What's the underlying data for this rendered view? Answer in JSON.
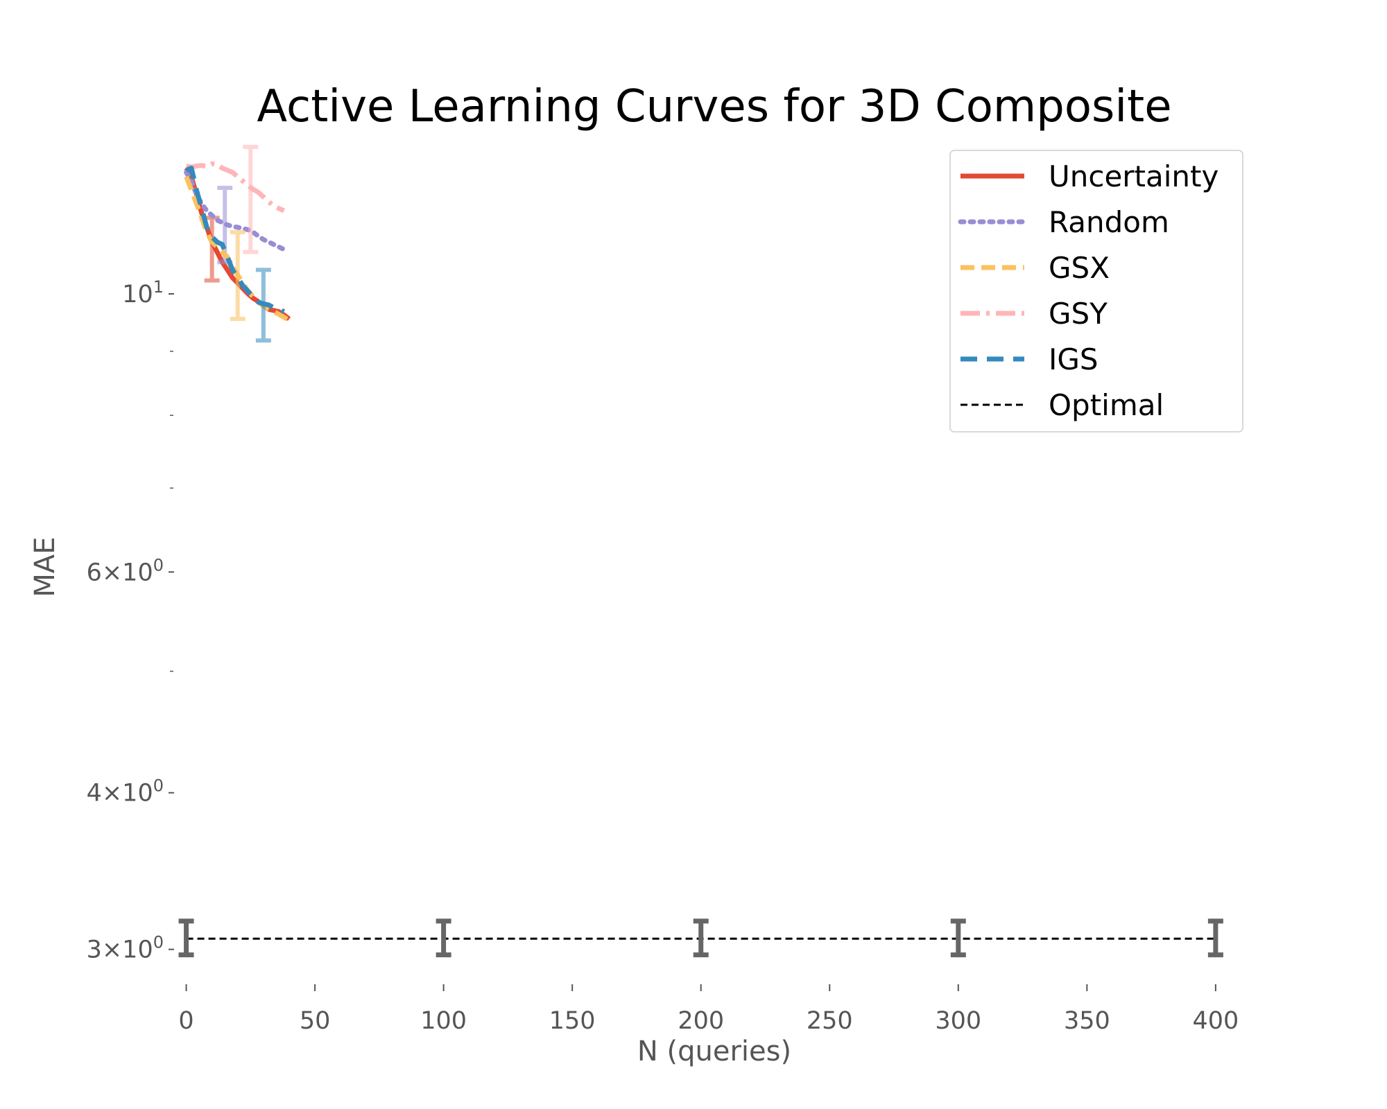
{
  "chart_data": {
    "type": "line",
    "title": "Active Learning Curves for 3D Composite",
    "xlabel": "N (queries)",
    "ylabel": "MAE",
    "xlim": [
      -5,
      410
    ],
    "ylim": [
      2.85,
      13.3
    ],
    "yscale": "log",
    "grid": false,
    "legend_position": "top-right",
    "x_ticks": [
      {
        "value": 0,
        "label": "0"
      },
      {
        "value": 50,
        "label": "50"
      },
      {
        "value": 100,
        "label": "100"
      },
      {
        "value": 150,
        "label": "150"
      },
      {
        "value": 200,
        "label": "200"
      },
      {
        "value": 250,
        "label": "250"
      },
      {
        "value": 300,
        "label": "300"
      },
      {
        "value": 350,
        "label": "350"
      },
      {
        "value": 400,
        "label": "400"
      }
    ],
    "y_ticks": [
      {
        "value": 10,
        "base": "10",
        "exp": "1",
        "mult": ""
      },
      {
        "value": 6,
        "base": "10",
        "exp": "0",
        "mult": "6×"
      },
      {
        "value": 4,
        "base": "10",
        "exp": "0",
        "mult": "4×"
      },
      {
        "value": 3,
        "base": "10",
        "exp": "0",
        "mult": "3×"
      }
    ],
    "y_minor_ticks": [
      9,
      8,
      7,
      5
    ],
    "series": [
      {
        "name": "Uncertainty",
        "color": "#E24A33",
        "dash": "solid",
        "x": [
          0,
          2,
          4,
          6,
          8,
          10,
          12,
          14,
          16,
          18,
          20,
          22,
          24,
          26,
          28,
          30,
          32,
          34,
          36,
          38,
          40
        ],
        "y": [
          12.6,
          12.4,
          12.0,
          11.6,
          11.3,
          11.0,
          10.8,
          10.6,
          10.45,
          10.3,
          10.2,
          10.1,
          10.0,
          9.92,
          9.86,
          9.78,
          9.72,
          9.7,
          9.68,
          9.62,
          9.55
        ],
        "errorbars": [
          {
            "x": 10,
            "low": 10.25,
            "high": 11.5
          }
        ]
      },
      {
        "name": "Random",
        "color": "#988ED5",
        "dash": "dotted",
        "x": [
          0,
          2,
          4,
          6,
          8,
          10,
          12,
          14,
          16,
          18,
          20,
          22,
          24,
          26,
          28,
          30,
          32,
          34,
          36,
          38
        ],
        "y": [
          12.5,
          12.3,
          12.0,
          11.8,
          11.65,
          11.55,
          11.45,
          11.4,
          11.35,
          11.32,
          11.3,
          11.28,
          11.25,
          11.2,
          11.12,
          11.05,
          11.0,
          10.95,
          10.9,
          10.85
        ],
        "errorbars": [
          {
            "x": 15,
            "low": 10.6,
            "high": 12.15
          }
        ]
      },
      {
        "name": "GSX",
        "color": "#FBC15E",
        "dash": "dashed",
        "x": [
          0,
          2,
          4,
          6,
          8,
          10,
          12,
          14,
          16,
          18,
          20,
          22,
          24,
          26,
          28,
          30,
          32,
          34,
          36,
          38,
          40
        ],
        "y": [
          12.4,
          12.1,
          11.8,
          11.5,
          11.2,
          11.0,
          10.9,
          10.8,
          10.7,
          10.5,
          10.35,
          10.2,
          10.05,
          9.95,
          9.85,
          9.78,
          9.72,
          9.68,
          9.63,
          9.58,
          9.52
        ],
        "errorbars": [
          {
            "x": 20,
            "low": 9.55,
            "high": 11.2
          }
        ]
      },
      {
        "name": "GSY",
        "color": "#FFB5B8",
        "dash": "dashdot",
        "x": [
          0,
          2,
          4,
          6,
          8,
          10,
          12,
          14,
          16,
          18,
          20,
          22,
          24,
          26,
          28,
          30,
          32,
          34,
          36,
          38
        ],
        "y": [
          12.65,
          12.62,
          12.65,
          12.66,
          12.64,
          12.7,
          12.68,
          12.6,
          12.55,
          12.5,
          12.4,
          12.3,
          12.2,
          12.12,
          12.05,
          11.95,
          11.85,
          11.75,
          11.7,
          11.65
        ],
        "errorbars": [
          {
            "x": 25,
            "low": 10.8,
            "high": 13.1
          }
        ]
      },
      {
        "name": "IGS",
        "color": "#348ABD",
        "dash": "longdash",
        "x": [
          0,
          2,
          4,
          6,
          8,
          10,
          12,
          14,
          16,
          18,
          20,
          22,
          24,
          26,
          28,
          30,
          32,
          34,
          36,
          38
        ],
        "y": [
          12.55,
          12.6,
          12.1,
          11.7,
          11.3,
          11.1,
          11.0,
          10.95,
          10.7,
          10.45,
          10.3,
          10.15,
          10.05,
          9.95,
          9.85,
          9.82,
          9.8,
          9.75,
          9.72,
          9.68
        ],
        "errorbars": [
          {
            "x": 30,
            "low": 9.18,
            "high": 10.45
          }
        ]
      },
      {
        "name": "Optimal",
        "color": "#000000",
        "dash": "fine",
        "x": [
          0,
          400
        ],
        "y": [
          3.06,
          3.06
        ],
        "errorbars": [
          {
            "x": 0,
            "low": 2.97,
            "high": 3.16
          },
          {
            "x": 100,
            "low": 2.97,
            "high": 3.16
          },
          {
            "x": 200,
            "low": 2.97,
            "high": 3.16
          },
          {
            "x": 300,
            "low": 2.97,
            "high": 3.16
          },
          {
            "x": 400,
            "low": 2.97,
            "high": 3.16
          }
        ]
      }
    ]
  }
}
